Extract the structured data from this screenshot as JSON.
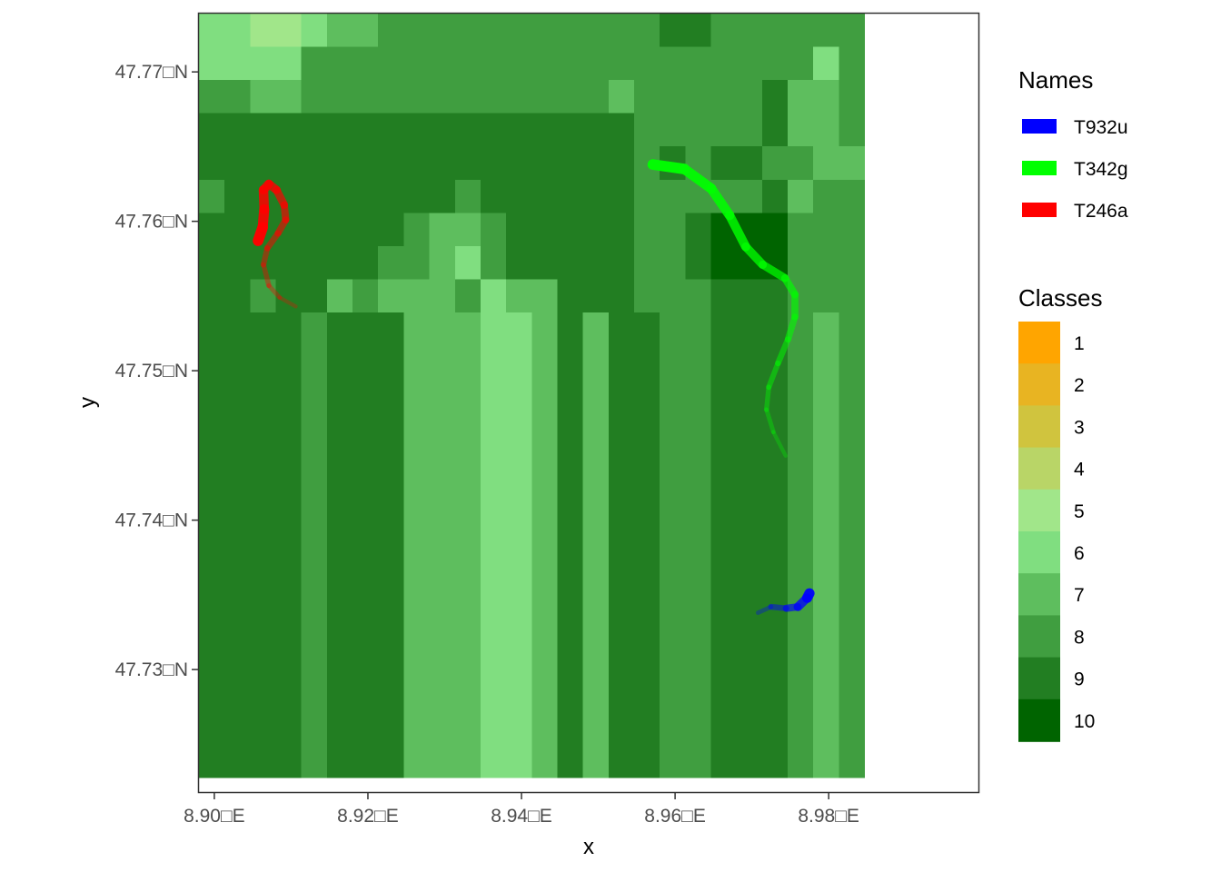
{
  "chart_data": {
    "type": "heatmap",
    "title": "",
    "xlabel": "x",
    "ylabel": "y",
    "xlim": [
      8.898,
      8.9995
    ],
    "ylim": [
      47.7218,
      47.7739
    ],
    "x_ticks": [
      {
        "value": 8.9,
        "label": "8.90□E"
      },
      {
        "value": 8.92,
        "label": "8.92□E"
      },
      {
        "value": 8.94,
        "label": "8.94□E"
      },
      {
        "value": 8.96,
        "label": "8.96□E"
      },
      {
        "value": 8.98,
        "label": "8.98□E"
      }
    ],
    "y_ticks": [
      {
        "value": 47.73,
        "label": "47.73□N"
      },
      {
        "value": 47.74,
        "label": "47.74□N"
      },
      {
        "value": 47.75,
        "label": "47.75□N"
      },
      {
        "value": 47.76,
        "label": "47.76□N"
      },
      {
        "value": 47.77,
        "label": "47.77□N"
      }
    ],
    "grid_lines": false,
    "raster": {
      "x_start": 8.898,
      "y_top": 47.7739,
      "cell_width": 0.003333,
      "cell_height": 0.002222,
      "rows": [
        "66556778888888888899888888",
        "66668888888888888888888868",
        "88778888888888887888889778",
        "99999999999999999888889778",
        "99999999999999999898998877",
        "89999999998999999888889788",
        "99999999877899999889000888",
        "99999998876899999889000888",
        "99899787778677999888999888",
        "99998999777667979988999878",
        "99998999777667979988999878",
        "99998999777667979988999878",
        "99998999777667979988999878",
        "99998999777667979988999878",
        "99998999777667979988999878",
        "99998999777667979988999878",
        "99998999777667979988999878",
        "99998999777667979988999878",
        "99998999777667979988999878",
        "99998999777667979988999878",
        "99998999777667979988999878",
        "99998999777667979988999878",
        "99998999777667979988999878"
      ]
    },
    "series": [
      {
        "name": "T932u",
        "color": "#0000ff",
        "x": [
          8.9708,
          8.9725,
          8.9745,
          8.976,
          8.9772,
          8.9775
        ],
        "y": [
          47.7338,
          47.7342,
          47.7341,
          47.7342,
          47.7348,
          47.7351
        ]
      },
      {
        "name": "T342g",
        "color": "#00ff00",
        "x": [
          8.9744,
          8.9728,
          8.9719,
          8.9722,
          8.9734,
          8.9747,
          8.9756,
          8.9756,
          8.9743,
          8.9714,
          8.9692,
          8.9671,
          8.9647,
          8.9612,
          8.9571
        ],
        "y": [
          47.7443,
          47.7459,
          47.7474,
          47.7489,
          47.7505,
          47.7521,
          47.7536,
          47.7551,
          47.7562,
          47.7571,
          47.7583,
          47.7604,
          47.7622,
          47.7635,
          47.7638
        ]
      },
      {
        "name": "T246a",
        "color": "#ff0000",
        "x": [
          8.9106,
          8.9085,
          8.9071,
          8.9064,
          8.9069,
          8.9083,
          8.9093,
          8.9091,
          8.9081,
          8.9071,
          8.9064,
          8.9065,
          8.9063,
          8.9057
        ],
        "y": [
          47.7543,
          47.7549,
          47.7557,
          47.7571,
          47.7582,
          47.7592,
          47.7601,
          47.7611,
          47.7621,
          47.7625,
          47.7621,
          47.7608,
          47.7596,
          47.7587
        ]
      }
    ],
    "legends": [
      {
        "title": "Names",
        "position": "right",
        "entries": [
          {
            "label": "T932u",
            "color": "#0000ff"
          },
          {
            "label": "T342g",
            "color": "#00ff00"
          },
          {
            "label": "T246a",
            "color": "#ff0000"
          }
        ]
      },
      {
        "title": "Classes",
        "position": "right",
        "entries": [
          {
            "label": "1",
            "color": "#ffa500"
          },
          {
            "label": "2",
            "color": "#e8b422"
          },
          {
            "label": "3",
            "color": "#d0c43e"
          },
          {
            "label": "4",
            "color": "#b9d567"
          },
          {
            "label": "5",
            "color": "#a1e68a"
          },
          {
            "label": "6",
            "color": "#80de80"
          },
          {
            "label": "7",
            "color": "#5ebe5e"
          },
          {
            "label": "8",
            "color": "#409e40"
          },
          {
            "label": "9",
            "color": "#227e22"
          },
          {
            "label": "10",
            "color": "#006400"
          }
        ]
      }
    ]
  }
}
